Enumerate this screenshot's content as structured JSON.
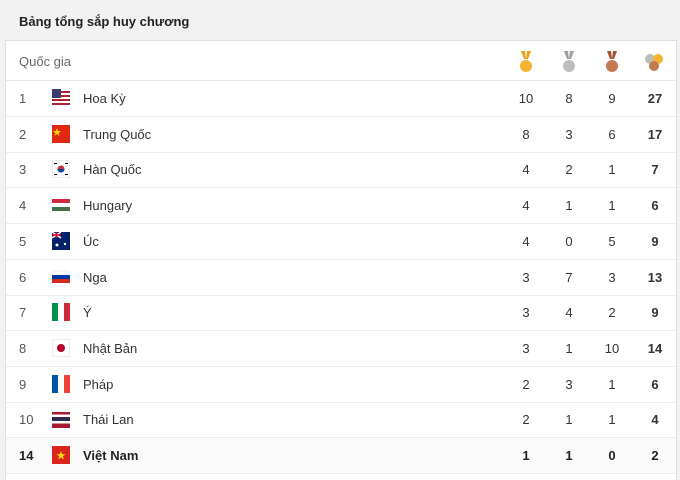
{
  "header": {
    "title": "Bảng tổng sắp huy chương"
  },
  "table": {
    "country_header": "Quốc gia",
    "rows": [
      {
        "rank": 1,
        "country": "Hoa Kỳ",
        "gold": 10,
        "silver": 8,
        "bronze": 9,
        "total": 27
      },
      {
        "rank": 2,
        "country": "Trung Quốc",
        "gold": 8,
        "silver": 3,
        "bronze": 6,
        "total": 17
      },
      {
        "rank": 3,
        "country": "Hàn Quốc",
        "gold": 4,
        "silver": 2,
        "bronze": 1,
        "total": 7
      },
      {
        "rank": 4,
        "country": "Hungary",
        "gold": 4,
        "silver": 1,
        "bronze": 1,
        "total": 6
      },
      {
        "rank": 5,
        "country": "Úc",
        "gold": 4,
        "silver": 0,
        "bronze": 5,
        "total": 9
      },
      {
        "rank": 6,
        "country": "Nga",
        "gold": 3,
        "silver": 7,
        "bronze": 3,
        "total": 13
      },
      {
        "rank": 7,
        "country": "Ý",
        "gold": 3,
        "silver": 4,
        "bronze": 2,
        "total": 9
      },
      {
        "rank": 8,
        "country": "Nhật Bản",
        "gold": 3,
        "silver": 1,
        "bronze": 10,
        "total": 14
      },
      {
        "rank": 9,
        "country": "Pháp",
        "gold": 2,
        "silver": 3,
        "bronze": 1,
        "total": 6
      },
      {
        "rank": 10,
        "country": "Thái Lan",
        "gold": 2,
        "silver": 1,
        "bronze": 1,
        "total": 4
      },
      {
        "rank": 14,
        "country": "Việt Nam",
        "gold": 1,
        "silver": 1,
        "bronze": 0,
        "total": 2
      }
    ]
  }
}
